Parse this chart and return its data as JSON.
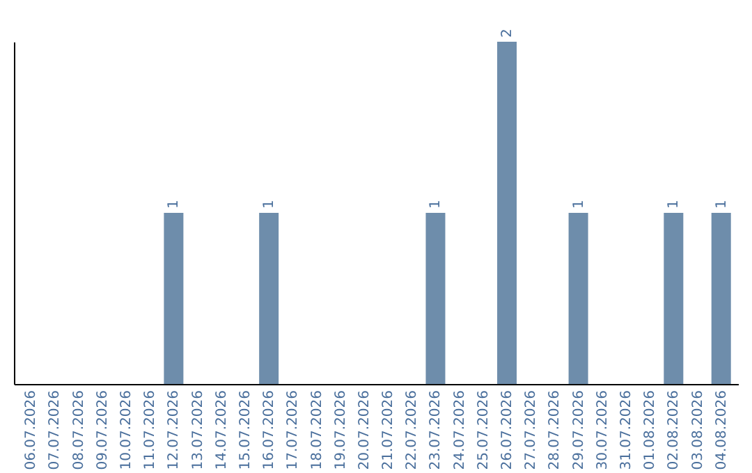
{
  "chart_data": {
    "type": "bar",
    "categories": [
      "06.07.2026",
      "07.07.2026",
      "08.07.2026",
      "09.07.2026",
      "10.07.2026",
      "11.07.2026",
      "12.07.2026",
      "13.07.2026",
      "14.07.2026",
      "15.07.2026",
      "16.07.2026",
      "17.07.2026",
      "18.07.2026",
      "19.07.2026",
      "20.07.2026",
      "21.07.2026",
      "22.07.2026",
      "23.07.2026",
      "24.07.2026",
      "25.07.2026",
      "26.07.2026",
      "27.07.2026",
      "28.07.2026",
      "29.07.2026",
      "30.07.2026",
      "31.07.2026",
      "01.08.2026",
      "02.08.2026",
      "03.08.2026",
      "04.08.2026"
    ],
    "values": [
      0,
      0,
      0,
      0,
      0,
      0,
      1,
      0,
      0,
      0,
      1,
      0,
      0,
      0,
      0,
      0,
      0,
      1,
      0,
      0,
      2,
      0,
      0,
      1,
      0,
      0,
      0,
      1,
      0,
      1
    ],
    "value_labels": [
      null,
      null,
      null,
      null,
      null,
      null,
      "1",
      null,
      null,
      null,
      "1",
      null,
      null,
      null,
      null,
      null,
      null,
      "1",
      null,
      null,
      "2",
      null,
      null,
      "1",
      null,
      null,
      null,
      "1",
      null,
      "1"
    ],
    "color": "#6e8dab",
    "tick_labels": "x",
    "grid": false
  }
}
